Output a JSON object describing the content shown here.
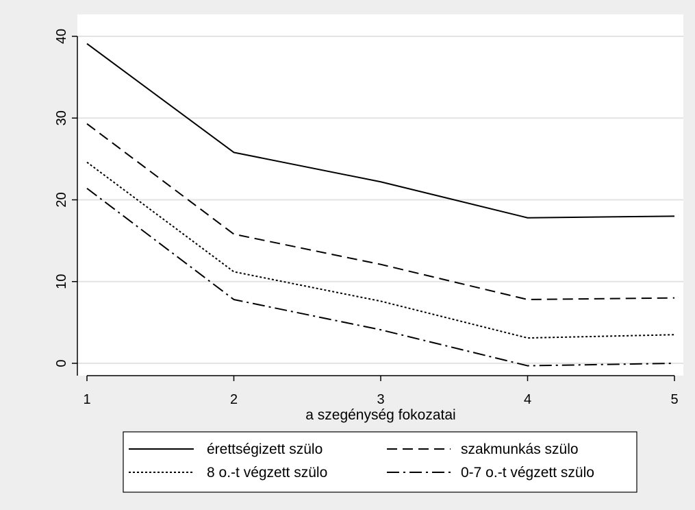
{
  "chart_data": {
    "type": "line",
    "title": "",
    "xlabel": "a szegénység fokozatai",
    "ylabel": "",
    "x": [
      1,
      2,
      3,
      4,
      5
    ],
    "xlim": [
      1,
      5
    ],
    "ylim": [
      0,
      40
    ],
    "x_ticks": [
      "1",
      "2",
      "3",
      "4",
      "5"
    ],
    "y_ticks": [
      "0",
      "10",
      "20",
      "30",
      "40"
    ],
    "grid": true,
    "legend_position": "bottom",
    "series": [
      {
        "name": "érettségizett szülo",
        "values": [
          39.1,
          25.8,
          22.2,
          17.8,
          18.0
        ],
        "dash": "solid"
      },
      {
        "name": "szakmunkás szülo",
        "values": [
          29.3,
          15.8,
          12.1,
          7.8,
          8.0
        ],
        "dash": "dashed"
      },
      {
        "name": "8 o.-t végzett szülo",
        "values": [
          24.6,
          11.2,
          7.6,
          3.1,
          3.5
        ],
        "dash": "dotted"
      },
      {
        "name": "0-7 o.-t végzett szülo",
        "values": [
          21.4,
          7.8,
          4.1,
          -0.3,
          0.0
        ],
        "dash": "dashdot"
      }
    ],
    "colors": {
      "background": "#eeeeee",
      "plot_background": "#ffffff",
      "grid": "#e3e3e3",
      "line": "#000000"
    }
  }
}
